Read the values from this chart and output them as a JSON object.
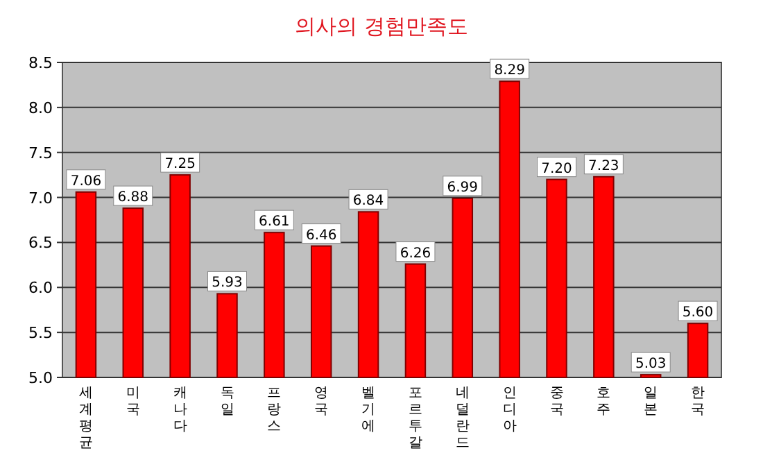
{
  "chart_data": {
    "type": "bar",
    "title": "의사의 경험만족도",
    "categories": [
      "세계평균",
      "미국",
      "캐나다",
      "독일",
      "프랑스",
      "영국",
      "벨기에",
      "포르투갈",
      "네덜란드",
      "인디아",
      "중국",
      "호주",
      "일본",
      "한국"
    ],
    "values": [
      7.06,
      6.88,
      7.25,
      5.93,
      6.61,
      6.46,
      6.84,
      6.26,
      6.99,
      8.29,
      7.2,
      7.23,
      5.03,
      5.6
    ],
    "value_labels": [
      "7.06",
      "6.88",
      "7.25",
      "5.93",
      "6.61",
      "6.46",
      "6.84",
      "6.26",
      "6.99",
      "8.29",
      "7.20",
      "7.23",
      "5.03",
      "5.60"
    ],
    "color": "#ff0000",
    "ylim": [
      5.0,
      8.5
    ],
    "yticks": [
      {
        "value": 5.0,
        "label": "5.0"
      },
      {
        "value": 5.5,
        "label": "5.5"
      },
      {
        "value": 6.0,
        "label": "6.0"
      },
      {
        "value": 6.5,
        "label": "6.5"
      },
      {
        "value": 7.0,
        "label": "7.0"
      },
      {
        "value": 7.5,
        "label": "7.5"
      },
      {
        "value": 8.0,
        "label": "8.0"
      },
      {
        "value": 8.5,
        "label": "8.5"
      }
    ],
    "grid": "y"
  }
}
